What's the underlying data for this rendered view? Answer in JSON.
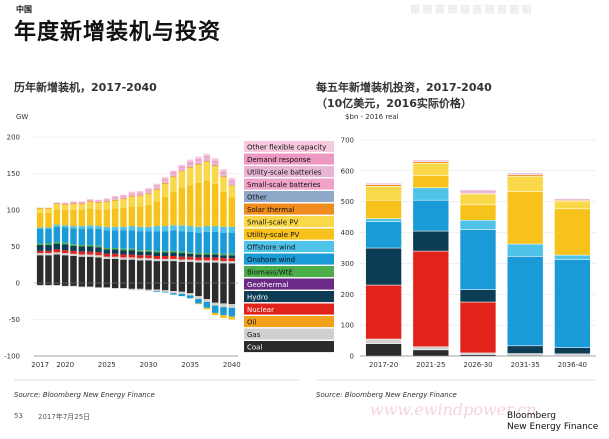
{
  "header": {
    "country": "中国",
    "title": "年度新增装机与投资"
  },
  "watermark_text": "ewindpower.cn",
  "footer": {
    "page": "53",
    "date": "2017年7月25日",
    "brand_line1": "Bloomberg",
    "brand_line2": "New Energy Finance"
  },
  "colors": {
    "Coal": "#2b2b2b",
    "Gas": "#d0d0d0",
    "Oil": "#f3a11b",
    "Nuclear": "#e2231a",
    "Hydro": "#0d3c55",
    "Geothermal": "#6a2a86",
    "Biomass/WtE": "#4daf4a",
    "Onshore wind": "#1a9ad6",
    "Offshore wind": "#4fc3e8",
    "Utility-scale PV": "#f7c21c",
    "Small-scale PV": "#f9d84a",
    "Solar thermal": "#f08c1e",
    "Other": "#8fa7c9",
    "Small-scale batteries": "#f0a3c8",
    "Utility-scale batteries": "#e8b6d4",
    "Demand response": "#ec98c3",
    "Other flexible capacity": "#f6c9de"
  },
  "chart_data": [
    {
      "type": "bar",
      "stacked": true,
      "title": "历年新增装机，2017-2040",
      "ylabel": "GW",
      "ylim": [
        -100,
        200
      ],
      "yticks": [
        -100,
        -50,
        0,
        50,
        100,
        150,
        200
      ],
      "xticks": [
        "2017",
        "2020",
        "2025",
        "2030",
        "2035",
        "2040"
      ],
      "x": [
        2017,
        2018,
        2019,
        2020,
        2021,
        2022,
        2023,
        2024,
        2025,
        2026,
        2027,
        2028,
        2029,
        2030,
        2031,
        2032,
        2033,
        2034,
        2035,
        2036,
        2037,
        2038,
        2039,
        2040
      ],
      "legend": [
        "Other flexible capacity",
        "Demand response",
        "Utility-scale batteries",
        "Small-scale batteries",
        "Other",
        "Solar thermal",
        "Small-scale PV",
        "Utility-scale PV",
        "Offshore wind",
        "Onshore wind",
        "Biomass/WtE",
        "Geothermal",
        "Hydro",
        "Nuclear",
        "Oil",
        "Gas",
        "Coal"
      ],
      "legend_placement": "right",
      "positive_series": [
        {
          "name": "Coal",
          "values": [
            38,
            38,
            39,
            38,
            37,
            36,
            36,
            35,
            33,
            33,
            32,
            32,
            31,
            31,
            30,
            30,
            30,
            29,
            29,
            28,
            28,
            28,
            27,
            27
          ]
        },
        {
          "name": "Gas",
          "values": [
            3,
            3,
            3,
            3,
            3,
            3,
            3,
            3,
            3,
            3,
            3,
            3,
            3,
            3,
            3,
            3,
            3,
            3,
            3,
            3,
            3,
            3,
            3,
            3
          ]
        },
        {
          "name": "Nuclear",
          "values": [
            3,
            3,
            4,
            4,
            4,
            4,
            4,
            4,
            4,
            4,
            4,
            4,
            4,
            4,
            4,
            4,
            4,
            4,
            4,
            4,
            4,
            4,
            4,
            4
          ]
        },
        {
          "name": "Hydro",
          "values": [
            8,
            8,
            8,
            8,
            7,
            7,
            7,
            7,
            6,
            6,
            6,
            6,
            5,
            5,
            5,
            5,
            5,
            5,
            4,
            4,
            4,
            4,
            4,
            4
          ]
        },
        {
          "name": "Biomass/WtE",
          "values": [
            2,
            2,
            2,
            2,
            2,
            2,
            2,
            2,
            2,
            2,
            2,
            2,
            2,
            2,
            2,
            2,
            2,
            2,
            2,
            2,
            2,
            2,
            2,
            2
          ]
        },
        {
          "name": "Onshore wind",
          "values": [
            20,
            20,
            21,
            21,
            22,
            22,
            23,
            23,
            24,
            24,
            25,
            25,
            26,
            26,
            27,
            27,
            28,
            28,
            28,
            28,
            29,
            29,
            29,
            29
          ]
        },
        {
          "name": "Offshore wind",
          "values": [
            2,
            2,
            3,
            3,
            3,
            4,
            4,
            4,
            5,
            5,
            5,
            6,
            6,
            6,
            7,
            7,
            7,
            8,
            8,
            8,
            8,
            8,
            8,
            8
          ]
        },
        {
          "name": "Utility-scale PV",
          "values": [
            20,
            20,
            21,
            21,
            22,
            22,
            23,
            23,
            24,
            25,
            26,
            27,
            28,
            30,
            34,
            40,
            46,
            52,
            56,
            60,
            62,
            58,
            48,
            40
          ]
        },
        {
          "name": "Small-scale PV",
          "values": [
            6,
            6,
            7,
            7,
            8,
            8,
            9,
            9,
            10,
            11,
            12,
            13,
            14,
            15,
            16,
            18,
            20,
            22,
            24,
            25,
            26,
            24,
            20,
            16
          ]
        },
        {
          "name": "Solar thermal",
          "values": [
            1,
            1,
            1,
            1,
            1,
            1,
            1,
            1,
            1,
            1,
            1,
            1,
            1,
            1,
            1,
            1,
            1,
            1,
            1,
            1,
            1,
            1,
            1,
            1
          ]
        },
        {
          "name": "Utility-scale batteries",
          "values": [
            0,
            0,
            1,
            1,
            1,
            1,
            1,
            1,
            2,
            2,
            2,
            2,
            2,
            3,
            3,
            3,
            3,
            3,
            4,
            4,
            4,
            4,
            4,
            4
          ]
        },
        {
          "name": "Small-scale batteries",
          "values": [
            0,
            0,
            0,
            1,
            1,
            1,
            1,
            1,
            1,
            2,
            2,
            2,
            2,
            2,
            2,
            3,
            3,
            3,
            3,
            3,
            3,
            3,
            3,
            3
          ]
        },
        {
          "name": "Other flexible capacity",
          "values": [
            0,
            0,
            0,
            0,
            1,
            1,
            1,
            1,
            1,
            1,
            1,
            2,
            2,
            2,
            2,
            2,
            2,
            2,
            3,
            3,
            3,
            3,
            3,
            3
          ]
        }
      ],
      "negative_series": [
        {
          "name": "Coal",
          "values": [
            -3,
            -3,
            -3,
            -4,
            -4,
            -5,
            -5,
            -6,
            -6,
            -7,
            -7,
            -8,
            -8,
            -9,
            -9,
            -10,
            -11,
            -12,
            -14,
            -18,
            -22,
            -27,
            -28,
            -29
          ]
        },
        {
          "name": "Gas",
          "values": [
            0,
            0,
            0,
            -1,
            -1,
            -1,
            -1,
            -1,
            -1,
            -1,
            -1,
            -2,
            -2,
            -2,
            -2,
            -2,
            -3,
            -3,
            -3,
            -4,
            -4,
            -4,
            -5,
            -5
          ]
        },
        {
          "name": "Onshore wind",
          "values": [
            0,
            0,
            0,
            0,
            0,
            0,
            0,
            0,
            0,
            0,
            0,
            0,
            0,
            0,
            -1,
            -1,
            -2,
            -3,
            -4,
            -6,
            -8,
            -10,
            -11,
            -12
          ]
        },
        {
          "name": "Utility-scale PV",
          "values": [
            0,
            0,
            0,
            0,
            0,
            0,
            0,
            0,
            0,
            0,
            0,
            0,
            0,
            0,
            0,
            0,
            0,
            0,
            0,
            -1,
            -2,
            -3,
            -4,
            -4
          ]
        }
      ]
    },
    {
      "type": "bar",
      "stacked": true,
      "title": "每五年新增装机投资，2017-2040",
      "subtitle": "（10亿美元，2016实际价格）",
      "ylabel": "$bn - 2016 real",
      "ylim": [
        0,
        700
      ],
      "yticks": [
        0,
        100,
        200,
        300,
        400,
        500,
        600,
        700
      ],
      "categories": [
        "2017-20",
        "2021-25",
        "2026-30",
        "2031-35",
        "2036-40"
      ],
      "series": [
        {
          "name": "Coal",
          "values": [
            40,
            20,
            5,
            3,
            2
          ]
        },
        {
          "name": "Gas",
          "values": [
            15,
            10,
            5,
            5,
            5
          ]
        },
        {
          "name": "Nuclear",
          "values": [
            175,
            310,
            165,
            0,
            0
          ]
        },
        {
          "name": "Hydro",
          "values": [
            120,
            65,
            40,
            25,
            20
          ]
        },
        {
          "name": "Onshore wind",
          "values": [
            85,
            100,
            195,
            290,
            285
          ]
        },
        {
          "name": "Offshore wind",
          "values": [
            10,
            40,
            30,
            40,
            15
          ]
        },
        {
          "name": "Utility-scale PV",
          "values": [
            60,
            40,
            50,
            170,
            150
          ]
        },
        {
          "name": "Small-scale PV",
          "values": [
            45,
            40,
            35,
            50,
            25
          ]
        },
        {
          "name": "Solar thermal",
          "values": [
            5,
            5,
            3,
            5,
            3
          ]
        },
        {
          "name": "Utility-scale batteries",
          "values": [
            5,
            5,
            10,
            5,
            5
          ]
        }
      ]
    }
  ]
}
